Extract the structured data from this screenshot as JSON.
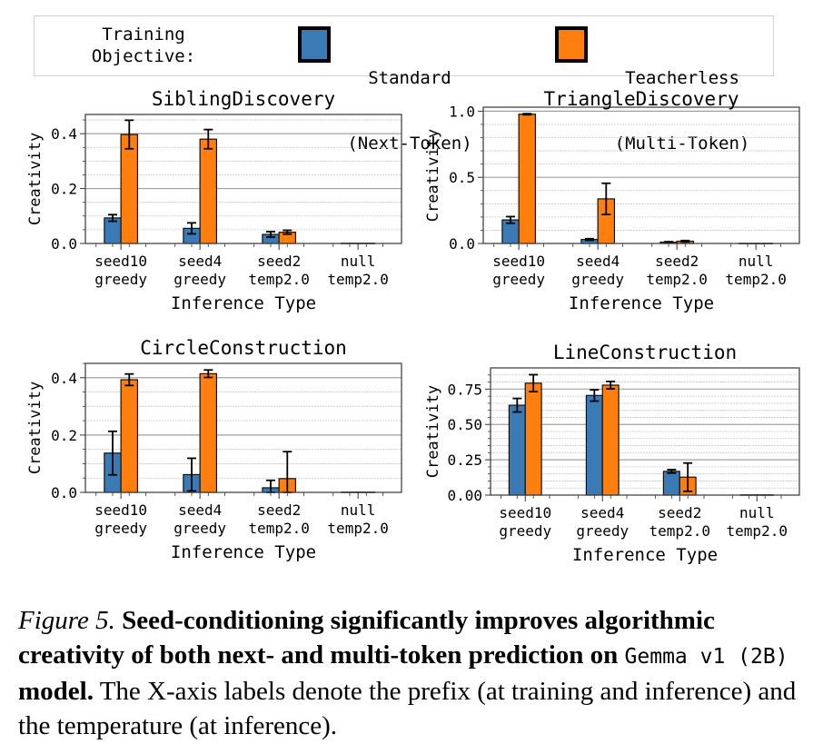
{
  "legend": {
    "title_line1": "Training",
    "title_line2": "Objective:",
    "entries": [
      {
        "line1": "Standard",
        "line2": "(Next-Token)",
        "color": "#3a7ab5"
      },
      {
        "line1": "Teacherless",
        "line2": "(Multi-Token)",
        "color": "#ff7f0e"
      }
    ]
  },
  "chart_data": [
    {
      "type": "bar",
      "title": "SiblingDiscovery",
      "xlabel": "Inference Type",
      "ylabel": "Creativity",
      "categories": [
        [
          "seed10",
          "greedy"
        ],
        [
          "seed4",
          "greedy"
        ],
        [
          "seed2",
          "temp2.0"
        ],
        [
          "null",
          "temp2.0"
        ]
      ],
      "ylim": [
        0,
        0.47
      ],
      "yticks": [
        0.0,
        0.2,
        0.4
      ],
      "ytick_labels": [
        "0.0",
        "0.2",
        "0.4"
      ],
      "minor_step": 0.05,
      "series": [
        {
          "name": "Standard (Next-Token)",
          "values": [
            0.093,
            0.055,
            0.033,
            0.001
          ],
          "errors": [
            0.012,
            0.02,
            0.01,
            0.0
          ]
        },
        {
          "name": "Teacherless (Multi-Token)",
          "values": [
            0.397,
            0.38,
            0.041,
            0.001
          ],
          "errors": [
            0.052,
            0.035,
            0.007,
            0.0
          ]
        }
      ],
      "grid": true
    },
    {
      "type": "bar",
      "title": "TriangleDiscovery",
      "xlabel": "Inference Type",
      "ylabel": "Creativity",
      "categories": [
        [
          "seed10",
          "greedy"
        ],
        [
          "seed4",
          "greedy"
        ],
        [
          "seed2",
          "temp2.0"
        ],
        [
          "null",
          "temp2.0"
        ]
      ],
      "ylim": [
        0,
        1.03
      ],
      "yticks": [
        0.0,
        0.5,
        1.0
      ],
      "ytick_labels": [
        "0.0",
        "0.5",
        "1.0"
      ],
      "minor_step": 0.1,
      "series": [
        {
          "name": "Standard (Next-Token)",
          "values": [
            0.178,
            0.03,
            0.01,
            0.001
          ],
          "errors": [
            0.025,
            0.006,
            0.003,
            0.0
          ]
        },
        {
          "name": "Teacherless (Multi-Token)",
          "values": [
            0.977,
            0.337,
            0.017,
            0.001
          ],
          "errors": [
            0.004,
            0.118,
            0.005,
            0.0
          ]
        }
      ],
      "grid": true
    },
    {
      "type": "bar",
      "title": "CircleConstruction",
      "xlabel": "Inference Type",
      "ylabel": "Creativity",
      "categories": [
        [
          "seed10",
          "greedy"
        ],
        [
          "seed4",
          "greedy"
        ],
        [
          "seed2",
          "temp2.0"
        ],
        [
          "null",
          "temp2.0"
        ]
      ],
      "ylim": [
        0,
        0.45
      ],
      "yticks": [
        0.0,
        0.2,
        0.4
      ],
      "ytick_labels": [
        "0.0",
        "0.2",
        "0.4"
      ],
      "minor_step": 0.05,
      "series": [
        {
          "name": "Standard (Next-Token)",
          "values": [
            0.137,
            0.062,
            0.016,
            0.001
          ],
          "errors": [
            0.076,
            0.057,
            0.026,
            0.0
          ]
        },
        {
          "name": "Teacherless (Multi-Token)",
          "values": [
            0.393,
            0.414,
            0.048,
            0.001
          ],
          "errors": [
            0.02,
            0.013,
            0.094,
            0.0
          ]
        }
      ],
      "grid": true
    },
    {
      "type": "bar",
      "title": "LineConstruction",
      "xlabel": "Inference Type",
      "ylabel": "Creativity",
      "categories": [
        [
          "seed10",
          "greedy"
        ],
        [
          "seed4",
          "greedy"
        ],
        [
          "seed2",
          "temp2.0"
        ],
        [
          "null",
          "temp2.0"
        ]
      ],
      "ylim": [
        0,
        0.9
      ],
      "yticks": [
        0.0,
        0.25,
        0.5,
        0.75
      ],
      "ytick_labels": [
        "0.00",
        "0.25",
        "0.50",
        "0.75"
      ],
      "minor_step": 0.05,
      "series": [
        {
          "name": "Standard (Next-Token)",
          "values": [
            0.636,
            0.705,
            0.168,
            0.002
          ],
          "errors": [
            0.048,
            0.04,
            0.012,
            0.0
          ]
        },
        {
          "name": "Teacherless (Multi-Token)",
          "values": [
            0.792,
            0.778,
            0.127,
            0.002
          ],
          "errors": [
            0.06,
            0.026,
            0.1,
            0.0
          ]
        }
      ],
      "grid": true
    }
  ],
  "caption": {
    "figure_label": "Figure 5.",
    "bold_part1": "Seed-conditioning significantly improves algorithmic creativity of both next- and multi-token prediction on",
    "mono_model": "Gemma v1 (2B)",
    "bold_part2": "model.",
    "rest": "The X-axis labels denote the prefix (at training and inference) and the temperature (at inference)."
  }
}
